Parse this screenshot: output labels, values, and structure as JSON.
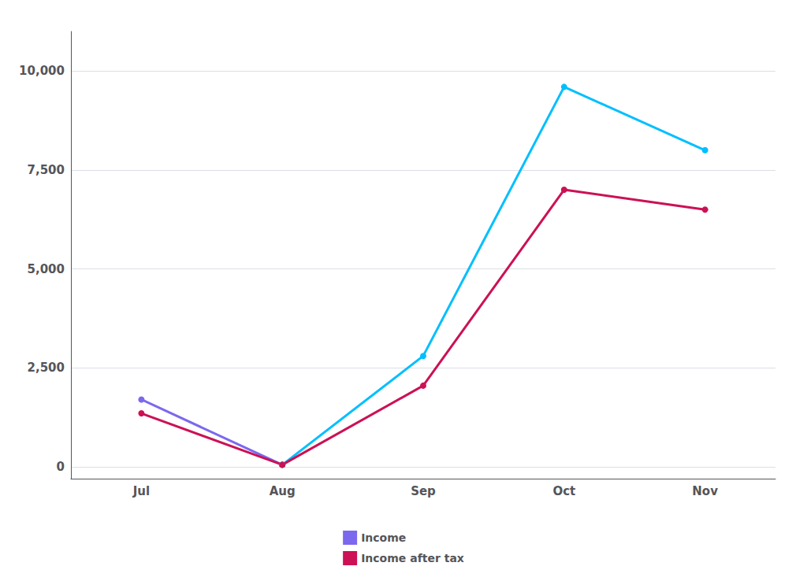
{
  "chart_data": {
    "type": "line",
    "categories": [
      "Jul",
      "Aug",
      "Sep",
      "Oct",
      "Nov"
    ],
    "series": [
      {
        "name": "Income",
        "color": "#7B68EE",
        "colors": [
          "#7B68EE",
          "#00BFFF",
          "#00BFFF",
          "#00BFFF",
          "#00BFFF"
        ],
        "values": [
          1700,
          50,
          2800,
          9600,
          8000
        ],
        "marker": "circle"
      },
      {
        "name": "Income after tax",
        "color": "#CC1155",
        "values": [
          1350,
          50,
          2050,
          7000,
          6500
        ],
        "marker": "circle"
      }
    ],
    "ylim": [
      -300,
      11000
    ],
    "yticks": [
      0,
      {
        "value": 2500,
        "label": "2,500"
      },
      {
        "value": 5000,
        "label": "5,000"
      },
      {
        "value": 7500,
        "label": "7,500"
      },
      {
        "value": 10000,
        "label": "10,000"
      }
    ],
    "grid": true,
    "legend": "bottom"
  }
}
